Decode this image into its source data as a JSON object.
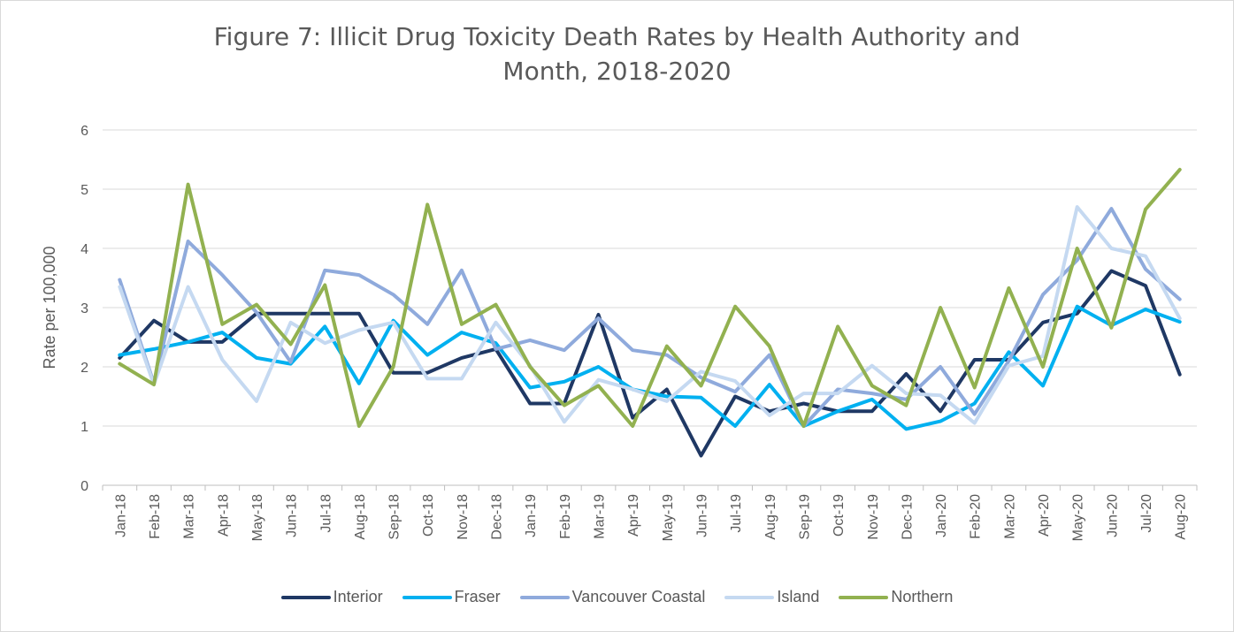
{
  "chart_data": {
    "type": "line",
    "title_line1": "Figure 7: Illicit Drug Toxicity Death Rates by Health Authority and",
    "title_line2": "Month, 2018-2020",
    "ylabel": "Rate per 100,000",
    "ylim": [
      0,
      6
    ],
    "yticks": [
      0,
      1,
      2,
      3,
      4,
      5,
      6
    ],
    "grid": true,
    "legend_position": "bottom",
    "categories": [
      "Jan-18",
      "Feb-18",
      "Mar-18",
      "Apr-18",
      "May-18",
      "Jun-18",
      "Jul-18",
      "Aug-18",
      "Sep-18",
      "Oct-18",
      "Nov-18",
      "Dec-18",
      "Jan-19",
      "Feb-19",
      "Mar-19",
      "Apr-19",
      "May-19",
      "Jun-19",
      "Jul-19",
      "Aug-19",
      "Sep-19",
      "Oct-19",
      "Nov-19",
      "Dec-19",
      "Jan-20",
      "Feb-20",
      "Mar-20",
      "Apr-20",
      "May-20",
      "Jun-20",
      "Jul-20",
      "Aug-20"
    ],
    "series": [
      {
        "name": "Interior",
        "color": "#1f3864",
        "values": [
          2.15,
          2.78,
          2.42,
          2.42,
          2.9,
          2.9,
          2.9,
          2.9,
          1.9,
          1.9,
          2.15,
          2.3,
          1.38,
          1.38,
          2.88,
          1.14,
          1.62,
          0.5,
          1.5,
          1.25,
          1.38,
          1.25,
          1.25,
          1.88,
          1.25,
          2.12,
          2.12,
          2.75,
          2.9,
          3.62,
          3.37,
          1.87
        ]
      },
      {
        "name": "Fraser",
        "color": "#00b0f0",
        "values": [
          2.2,
          2.3,
          2.42,
          2.58,
          2.15,
          2.05,
          2.68,
          1.72,
          2.78,
          2.2,
          2.58,
          2.4,
          1.65,
          1.75,
          2.0,
          1.62,
          1.5,
          1.48,
          1.0,
          1.7,
          1.0,
          1.25,
          1.45,
          0.95,
          1.08,
          1.38,
          2.25,
          1.68,
          3.02,
          2.7,
          2.97,
          2.76
        ]
      },
      {
        "name": "Vancouver Coastal",
        "color": "#8faadc",
        "values": [
          3.47,
          1.72,
          4.12,
          3.55,
          2.92,
          2.08,
          3.63,
          3.55,
          3.22,
          2.72,
          3.63,
          2.3,
          2.45,
          2.28,
          2.82,
          2.28,
          2.2,
          1.82,
          1.58,
          2.2,
          1.0,
          1.62,
          1.55,
          1.45,
          2.0,
          1.2,
          2.1,
          3.22,
          3.8,
          4.67,
          3.65,
          3.14
        ]
      },
      {
        "name": "Island",
        "color": "#c5d9f1",
        "values": [
          3.35,
          1.7,
          3.35,
          2.12,
          1.42,
          2.75,
          2.4,
          2.62,
          2.75,
          1.8,
          1.8,
          2.75,
          2.02,
          1.07,
          1.78,
          1.62,
          1.42,
          1.92,
          1.76,
          1.18,
          1.55,
          1.55,
          2.02,
          1.55,
          1.52,
          1.05,
          2.02,
          2.18,
          4.7,
          4.0,
          3.87,
          2.82
        ]
      },
      {
        "name": "Northern",
        "color": "#92b150",
        "values": [
          2.05,
          1.7,
          5.08,
          2.72,
          3.05,
          2.38,
          3.38,
          1.0,
          2.0,
          4.74,
          2.72,
          3.05,
          2.0,
          1.35,
          1.68,
          1.0,
          2.35,
          1.68,
          3.02,
          2.35,
          1.0,
          2.68,
          1.68,
          1.35,
          3.0,
          1.65,
          3.33,
          2.0,
          4.0,
          2.66,
          4.66,
          5.33
        ]
      }
    ]
  }
}
